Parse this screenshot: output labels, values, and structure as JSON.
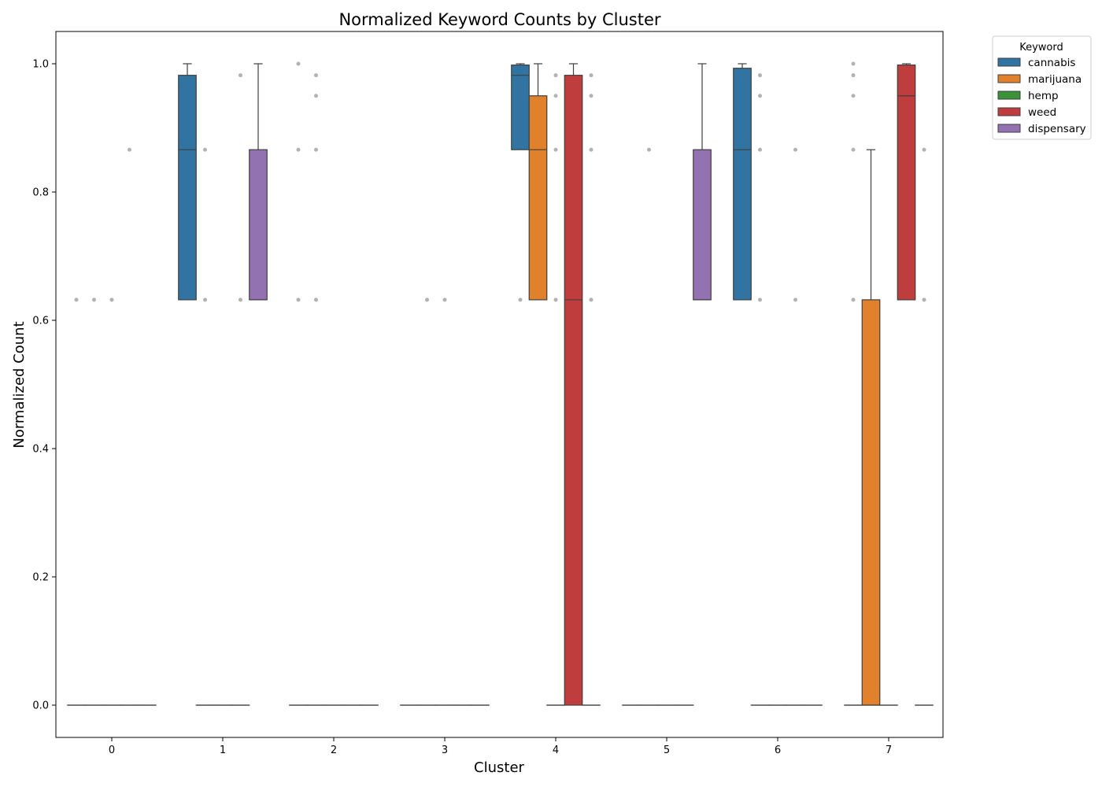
{
  "chart_data": {
    "type": "box",
    "title": "Normalized Keyword Counts by Cluster",
    "xlabel": "Cluster",
    "ylabel": "Normalized Count",
    "categories": [
      "0",
      "1",
      "2",
      "3",
      "4",
      "5",
      "6",
      "7"
    ],
    "ylim": [
      -0.05,
      1.05
    ],
    "yticks": [
      0.0,
      0.2,
      0.4,
      0.6,
      0.8,
      1.0
    ],
    "ytick_labels": [
      "0.0",
      "0.2",
      "0.4",
      "0.6",
      "0.8",
      "1.0"
    ],
    "grid": false,
    "legend": {
      "title": "Keyword",
      "placement": "outside-top-right"
    },
    "series": [
      {
        "name": "cannabis",
        "color": "#3274a1",
        "boxes": [
          {
            "q1": 0,
            "median": 0,
            "q3": 0,
            "whislo": 0,
            "whishi": 0,
            "fliers": [
              0.632
            ]
          },
          {
            "q1": 0.632,
            "median": 0.866,
            "q3": 0.982,
            "whislo": 0.632,
            "whishi": 1.0,
            "fliers": []
          },
          {
            "q1": 0,
            "median": 0,
            "q3": 0,
            "whislo": 0,
            "whishi": 0,
            "fliers": [
              0.632,
              0.866,
              1.0
            ]
          },
          {
            "q1": 0,
            "median": 0,
            "q3": 0,
            "whislo": 0,
            "whishi": 0,
            "fliers": []
          },
          {
            "q1": 0.866,
            "median": 0.982,
            "q3": 0.998,
            "whislo": 0.866,
            "whishi": 1.0,
            "fliers": [
              0.632
            ]
          },
          {
            "q1": 0,
            "median": 0,
            "q3": 0,
            "whislo": 0,
            "whishi": 0,
            "fliers": []
          },
          {
            "q1": 0.632,
            "median": 0.866,
            "q3": 0.993,
            "whislo": 0.632,
            "whishi": 1.0,
            "fliers": []
          },
          {
            "q1": 0,
            "median": 0,
            "q3": 0,
            "whislo": 0,
            "whishi": 0,
            "fliers": [
              0.632,
              0.866,
              0.95,
              0.982,
              1.0
            ]
          }
        ]
      },
      {
        "name": "marijuana",
        "color": "#e1812c",
        "boxes": [
          {
            "q1": 0,
            "median": 0,
            "q3": 0,
            "whislo": 0,
            "whishi": 0,
            "fliers": [
              0.632
            ]
          },
          {
            "q1": 0,
            "median": 0,
            "q3": 0,
            "whislo": 0,
            "whishi": 0,
            "fliers": [
              0.632,
              0.866
            ]
          },
          {
            "q1": 0,
            "median": 0,
            "q3": 0,
            "whislo": 0,
            "whishi": 0,
            "fliers": [
              0.632,
              0.866,
              0.95,
              0.982
            ]
          },
          {
            "q1": 0,
            "median": 0,
            "q3": 0,
            "whislo": 0,
            "whishi": 0,
            "fliers": [
              0.632
            ]
          },
          {
            "q1": 0.632,
            "median": 0.866,
            "q3": 0.95,
            "whislo": 0.632,
            "whishi": 1.0,
            "fliers": []
          },
          {
            "q1": 0,
            "median": 0,
            "q3": 0,
            "whislo": 0,
            "whishi": 0,
            "fliers": [
              0.866
            ]
          },
          {
            "q1": 0,
            "median": 0,
            "q3": 0,
            "whislo": 0,
            "whishi": 0,
            "fliers": [
              0.632,
              0.866,
              0.95,
              0.982
            ]
          },
          {
            "q1": 0,
            "median": 0,
            "q3": 0.632,
            "whislo": 0,
            "whishi": 0.866,
            "fliers": []
          }
        ]
      },
      {
        "name": "hemp",
        "color": "#3a923a",
        "boxes": [
          {
            "q1": 0,
            "median": 0,
            "q3": 0,
            "whislo": 0,
            "whishi": 0,
            "fliers": [
              0.632
            ]
          },
          {
            "q1": 0,
            "median": 0,
            "q3": 0,
            "whislo": 0,
            "whishi": 0,
            "fliers": []
          },
          {
            "q1": 0,
            "median": 0,
            "q3": 0,
            "whislo": 0,
            "whishi": 0,
            "fliers": []
          },
          {
            "q1": 0,
            "median": 0,
            "q3": 0,
            "whislo": 0,
            "whishi": 0,
            "fliers": [
              0.632
            ]
          },
          {
            "q1": 0,
            "median": 0,
            "q3": 0,
            "whislo": 0,
            "whishi": 0,
            "fliers": [
              0.632,
              0.866,
              0.95,
              0.982
            ]
          },
          {
            "q1": 0,
            "median": 0,
            "q3": 0,
            "whislo": 0,
            "whishi": 0,
            "fliers": []
          },
          {
            "q1": 0,
            "median": 0,
            "q3": 0,
            "whislo": 0,
            "whishi": 0,
            "fliers": []
          },
          {
            "q1": 0,
            "median": 0,
            "q3": 0,
            "whislo": 0,
            "whishi": 0,
            "fliers": []
          }
        ]
      },
      {
        "name": "weed",
        "color": "#c03d3e",
        "boxes": [
          {
            "q1": 0,
            "median": 0,
            "q3": 0,
            "whislo": 0,
            "whishi": 0,
            "fliers": [
              0.866
            ]
          },
          {
            "q1": 0,
            "median": 0,
            "q3": 0,
            "whislo": 0,
            "whishi": 0,
            "fliers": [
              0.632,
              0.982
            ]
          },
          {
            "q1": 0,
            "median": 0,
            "q3": 0,
            "whislo": 0,
            "whishi": 0,
            "fliers": []
          },
          {
            "q1": 0,
            "median": 0,
            "q3": 0,
            "whislo": 0,
            "whishi": 0,
            "fliers": []
          },
          {
            "q1": 0,
            "median": 0.632,
            "q3": 0.982,
            "whislo": 0,
            "whishi": 1.0,
            "fliers": []
          },
          {
            "q1": 0,
            "median": 0,
            "q3": 0,
            "whislo": 0,
            "whishi": 0,
            "fliers": []
          },
          {
            "q1": 0,
            "median": 0,
            "q3": 0,
            "whislo": 0,
            "whishi": 0,
            "fliers": [
              0.632,
              0.866
            ]
          },
          {
            "q1": 0.632,
            "median": 0.95,
            "q3": 0.998,
            "whislo": 0.632,
            "whishi": 1.0,
            "fliers": []
          }
        ]
      },
      {
        "name": "dispensary",
        "color": "#9372b2",
        "boxes": [
          {
            "q1": 0,
            "median": 0,
            "q3": 0,
            "whislo": 0,
            "whishi": 0,
            "fliers": []
          },
          {
            "q1": 0.632,
            "median": 0.632,
            "q3": 0.866,
            "whislo": 0.632,
            "whishi": 1.0,
            "fliers": []
          },
          {
            "q1": 0,
            "median": 0,
            "q3": 0,
            "whislo": 0,
            "whishi": 0,
            "fliers": []
          },
          {
            "q1": 0,
            "median": 0,
            "q3": 0,
            "whislo": 0,
            "whishi": 0,
            "fliers": []
          },
          {
            "q1": 0,
            "median": 0,
            "q3": 0,
            "whislo": 0,
            "whishi": 0,
            "fliers": [
              0.632,
              0.866,
              0.95,
              0.982
            ]
          },
          {
            "q1": 0.632,
            "median": 0.632,
            "q3": 0.866,
            "whislo": 0.632,
            "whishi": 1.0,
            "fliers": []
          },
          {
            "q1": 0,
            "median": 0,
            "q3": 0,
            "whislo": 0,
            "whishi": 0,
            "fliers": []
          },
          {
            "q1": 0,
            "median": 0,
            "q3": 0,
            "whislo": 0,
            "whishi": 0,
            "fliers": [
              0.632,
              0.866
            ]
          }
        ]
      }
    ]
  }
}
